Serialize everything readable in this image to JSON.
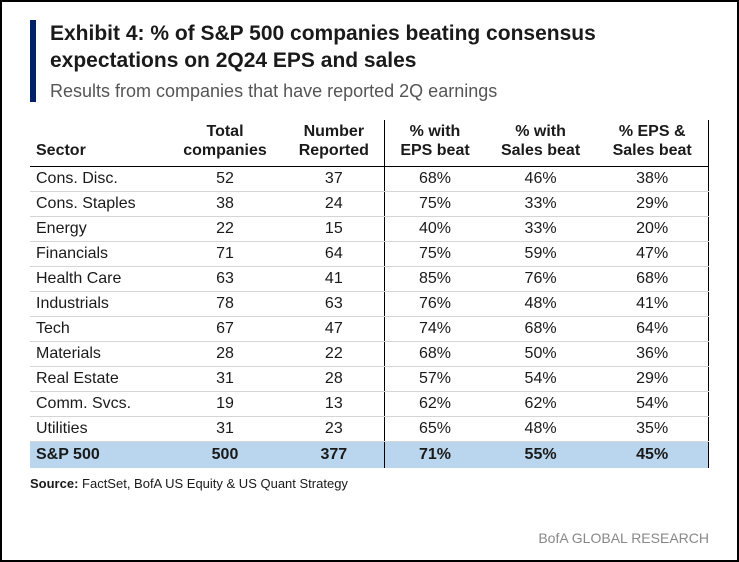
{
  "title": {
    "main": "Exhibit 4: % of S&P 500 companies beating consensus expectations on 2Q24 EPS and sales",
    "sub": "Results from companies that have reported 2Q earnings",
    "accent_color": "#012169"
  },
  "table": {
    "columns": [
      {
        "label": "Sector",
        "align": "left"
      },
      {
        "label": "Total companies",
        "align": "center"
      },
      {
        "label": "Number Reported",
        "align": "center"
      },
      {
        "label": "% with EPS beat",
        "align": "center"
      },
      {
        "label": "% with Sales beat",
        "align": "center"
      },
      {
        "label": "% EPS & Sales beat",
        "align": "center"
      }
    ],
    "rows": [
      [
        "Cons. Disc.",
        "52",
        "37",
        "68%",
        "46%",
        "38%"
      ],
      [
        "Cons. Staples",
        "38",
        "24",
        "75%",
        "33%",
        "29%"
      ],
      [
        "Energy",
        "22",
        "15",
        "40%",
        "33%",
        "20%"
      ],
      [
        "Financials",
        "71",
        "64",
        "75%",
        "59%",
        "47%"
      ],
      [
        "Health Care",
        "63",
        "41",
        "85%",
        "76%",
        "68%"
      ],
      [
        "Industrials",
        "78",
        "63",
        "76%",
        "48%",
        "41%"
      ],
      [
        "Tech",
        "67",
        "47",
        "74%",
        "68%",
        "64%"
      ],
      [
        "Materials",
        "28",
        "22",
        "68%",
        "50%",
        "36%"
      ],
      [
        "Real Estate",
        "31",
        "28",
        "57%",
        "54%",
        "29%"
      ],
      [
        "Comm. Svcs.",
        "19",
        "13",
        "62%",
        "62%",
        "54%"
      ],
      [
        "Utilities",
        "31",
        "23",
        "65%",
        "48%",
        "35%"
      ]
    ],
    "summary": [
      "S&P 500",
      "500",
      "377",
      "71%",
      "55%",
      "45%"
    ],
    "summary_bg": "#b9d6ee",
    "row_border_color": "#d5d5d5",
    "header_border_color": "#000000",
    "font_size": 16
  },
  "source": {
    "label": "Source:",
    "text": " FactSet, BofA US Equity & US Quant Strategy"
  },
  "footer": {
    "brand": "BofA GLOBAL RESEARCH"
  }
}
